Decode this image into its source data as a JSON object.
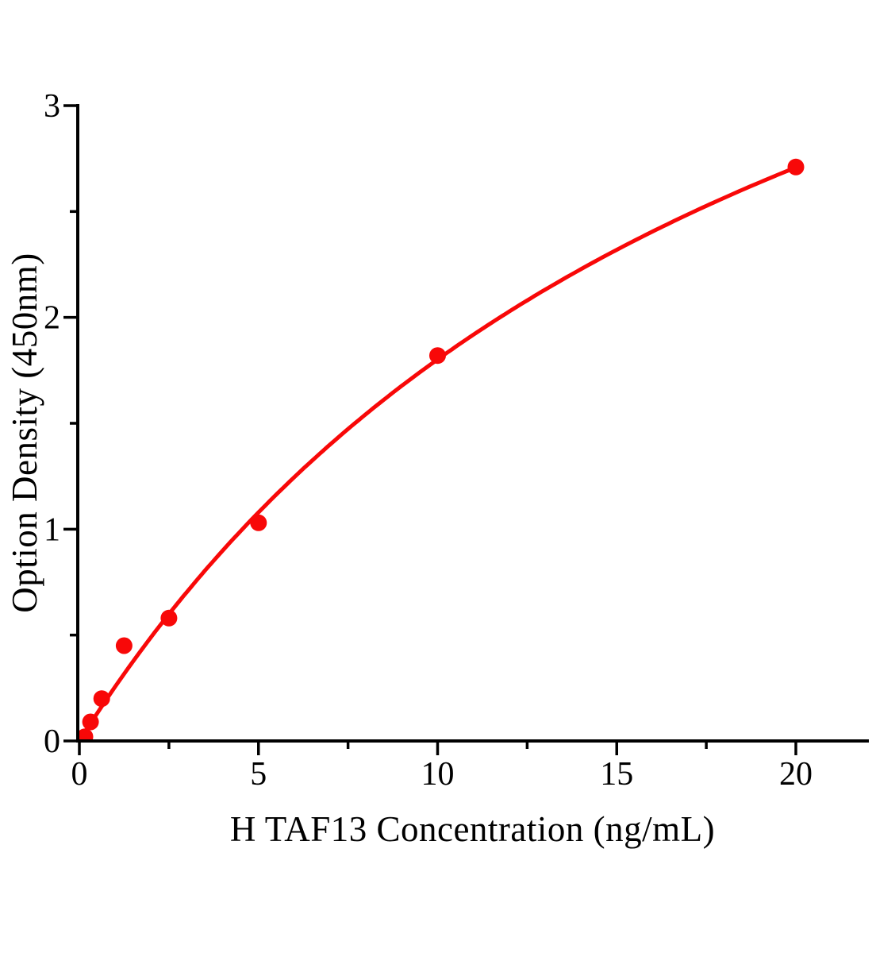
{
  "chart_data": {
    "type": "scatter",
    "title": "",
    "xlabel": "H TAF13 Concentration（ng/mL）",
    "ylabel": "Option Density（450nm）",
    "x": [
      0.156,
      0.313,
      0.625,
      1.25,
      2.5,
      5,
      10,
      20
    ],
    "y": [
      0.02,
      0.09,
      0.2,
      0.45,
      0.58,
      1.03,
      1.82,
      2.71
    ],
    "xlim": [
      0,
      22
    ],
    "ylim": [
      0,
      3
    ],
    "x_major_ticks": [
      0,
      5,
      10,
      15,
      20
    ],
    "x_minor_ticks": [
      2.5,
      7.5,
      12.5,
      17.5
    ],
    "x_tick_labels": [
      "0",
      "5",
      "10",
      "15",
      "20"
    ],
    "y_major_ticks": [
      0,
      1,
      2,
      3
    ],
    "y_minor_ticks": [
      0.5,
      1.5,
      2.5
    ],
    "y_tick_labels": [
      "0",
      "1",
      "2",
      "3"
    ],
    "grid": false,
    "legend_position": "none",
    "marker_color": "#f80808",
    "line_color": "#f80808",
    "axis_color": "#000000",
    "fit_curve": {
      "model": "michaelis_menten",
      "a": 5.45,
      "b": 20.25,
      "x_range": [
        0,
        20
      ]
    }
  }
}
